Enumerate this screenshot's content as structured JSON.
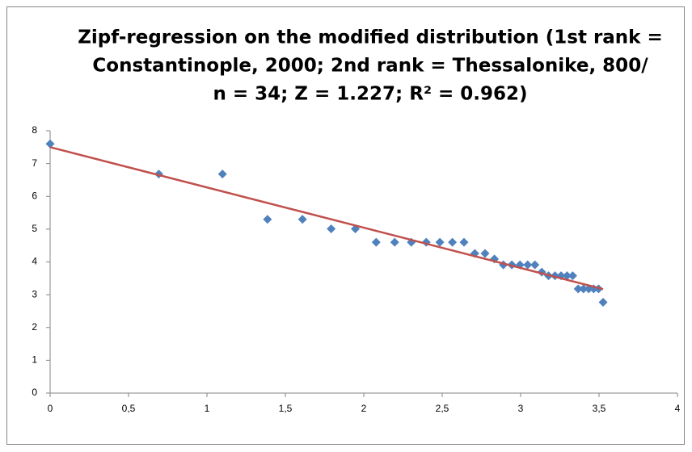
{
  "chart_data": {
    "type": "scatter",
    "title": [
      "Zipf-regression on the modified distribution (1st rank =",
      "Constantinople, 2000; 2nd rank = Thessalonike, 800/",
      "n = 34; Z = 1.227; R² = 0.962)"
    ],
    "x": [
      0,
      0.693,
      1.099,
      1.386,
      1.609,
      1.792,
      1.946,
      2.079,
      2.197,
      2.303,
      2.398,
      2.485,
      2.565,
      2.639,
      2.708,
      2.773,
      2.833,
      2.89,
      2.944,
      2.996,
      3.045,
      3.091,
      3.135,
      3.178,
      3.219,
      3.258,
      3.296,
      3.332,
      3.367,
      3.401,
      3.434,
      3.466,
      3.497,
      3.526
    ],
    "values": [
      7.6,
      6.68,
      6.68,
      5.3,
      5.3,
      5.01,
      5.01,
      4.6,
      4.6,
      4.6,
      4.6,
      4.6,
      4.6,
      4.6,
      4.26,
      4.26,
      4.09,
      3.91,
      3.91,
      3.91,
      3.91,
      3.91,
      3.69,
      3.58,
      3.58,
      3.58,
      3.58,
      3.58,
      3.18,
      3.18,
      3.18,
      3.18,
      3.18,
      2.77
    ],
    "color": "#4f81bd",
    "trendline": {
      "x": [
        0,
        3.526
      ],
      "values": [
        7.5,
        3.17
      ],
      "color": "#c0504d"
    },
    "xlim": [
      0,
      4
    ],
    "xticks": [
      0,
      {
        "value": 0.5,
        "label": "0,5"
      },
      1,
      {
        "value": 1.5,
        "label": "1,5"
      },
      2,
      {
        "value": 2.5,
        "label": "2,5"
      },
      3,
      {
        "value": 3.5,
        "label": "3,5"
      },
      4
    ],
    "ylim": [
      0,
      8
    ],
    "yticks": [
      0,
      1,
      2,
      3,
      4,
      5,
      6,
      7,
      8
    ],
    "grid": false
  }
}
